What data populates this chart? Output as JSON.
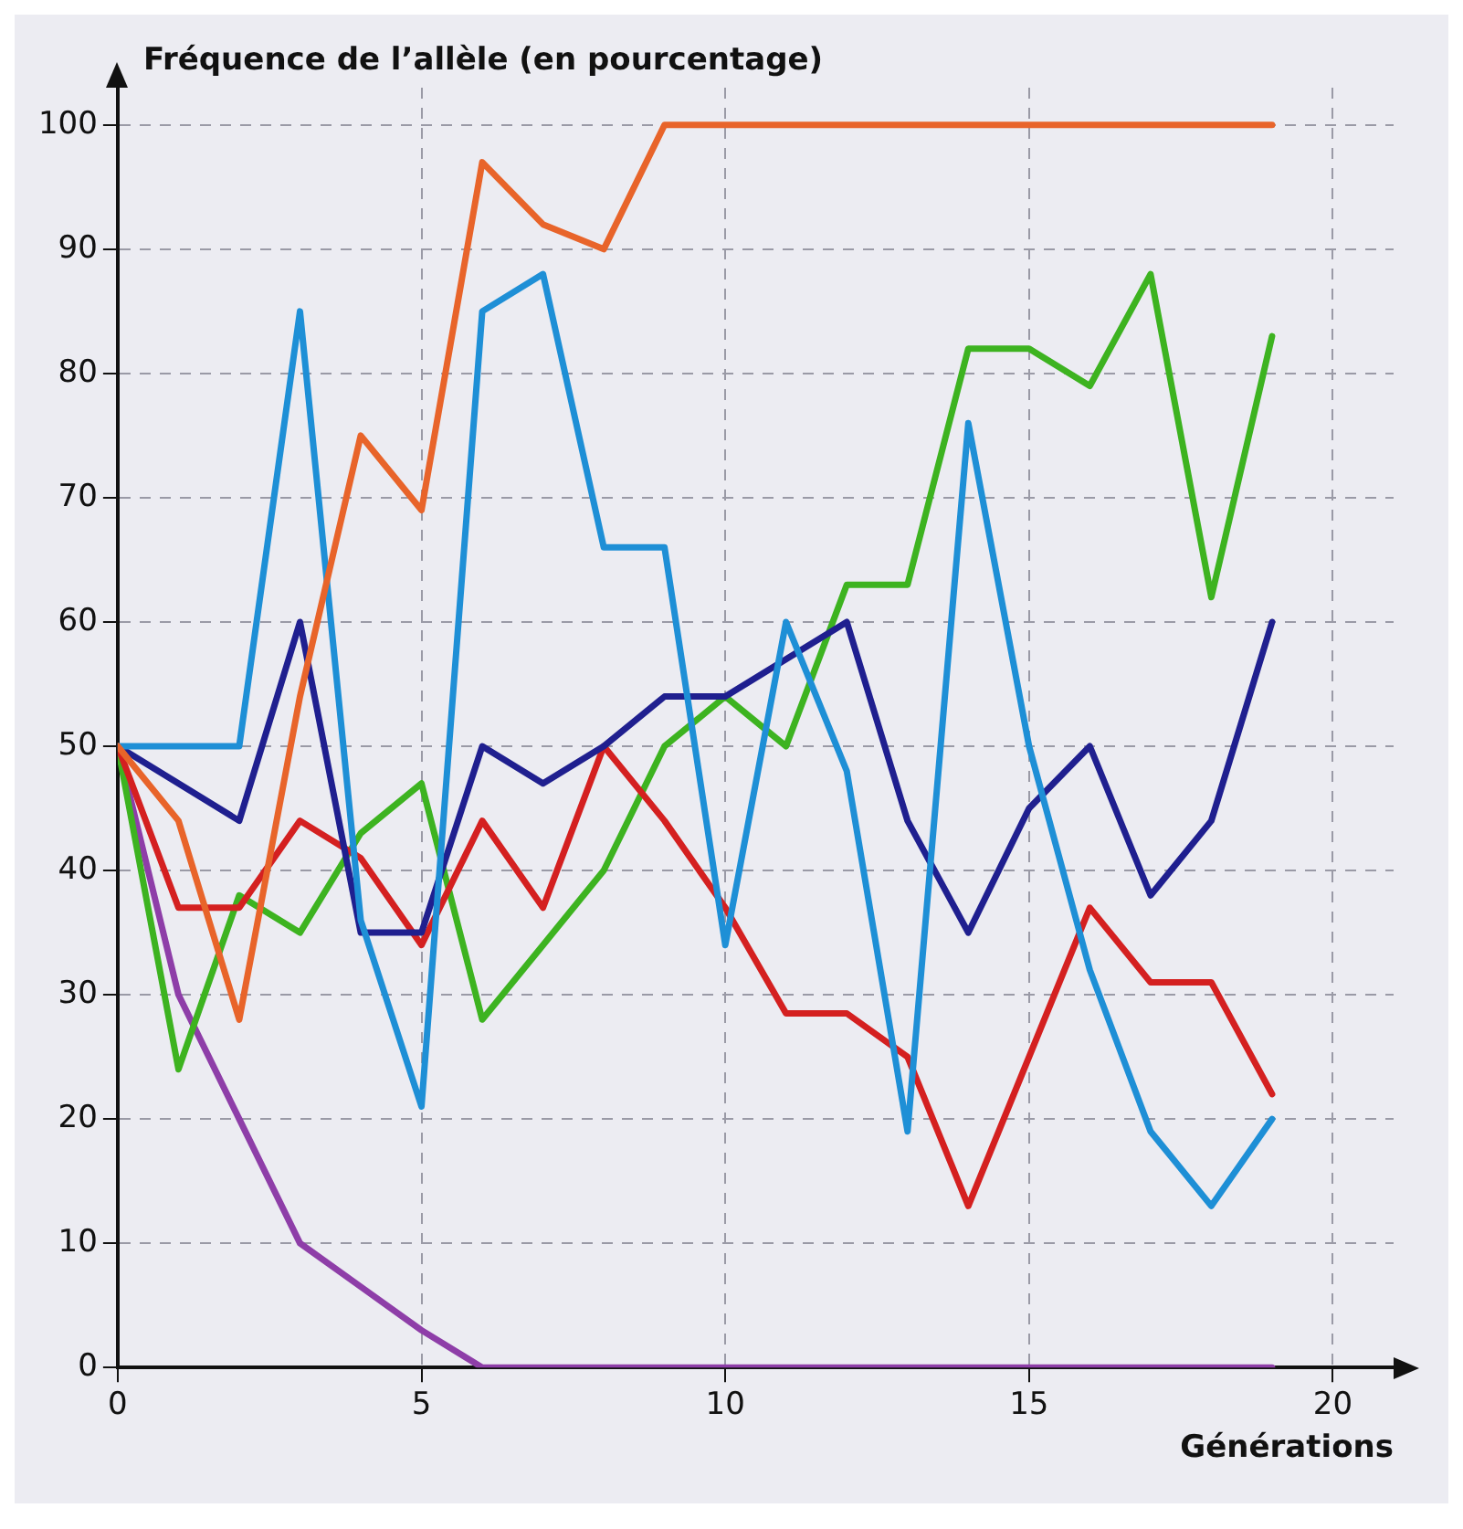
{
  "chart_data": {
    "type": "line",
    "ylabel": "Fréquence de l’allèle (en pourcentage)",
    "xlabel": "Générations",
    "x": [
      0,
      1,
      2,
      3,
      4,
      5,
      6,
      7,
      8,
      9,
      10,
      11,
      12,
      13,
      14,
      15,
      16,
      17,
      18,
      19
    ],
    "series": [
      {
        "color": "#e8642a",
        "values": [
          50,
          44,
          28,
          54,
          75,
          69,
          97,
          92,
          90,
          100,
          100,
          100,
          100,
          100,
          100,
          100,
          100,
          100,
          100,
          100
        ]
      },
      {
        "color": "#1e8fd6",
        "values": [
          50,
          50,
          50,
          85,
          36,
          21,
          85,
          88,
          66,
          66,
          34,
          60,
          48,
          19,
          76,
          50,
          32,
          19,
          13,
          20
        ]
      },
      {
        "color": "#1f1f8f",
        "values": [
          50,
          47,
          44,
          60,
          35,
          35,
          50,
          47,
          50,
          54,
          54,
          57,
          60,
          44,
          35,
          45,
          50,
          38,
          44,
          60
        ]
      },
      {
        "color": "#d42020",
        "values": [
          50,
          37,
          37,
          44,
          41,
          34,
          44,
          37,
          50,
          44,
          37,
          28.5,
          28.5,
          25,
          13,
          25,
          37,
          31,
          31,
          22
        ]
      },
      {
        "color": "#3db320",
        "values": [
          50,
          24,
          38,
          35,
          43,
          47,
          28,
          34,
          40,
          50,
          54,
          50,
          63,
          63,
          82,
          82,
          79,
          88,
          62,
          83
        ]
      },
      {
        "color": "#8e3ea8",
        "values": [
          50,
          30,
          20,
          10,
          6.5,
          3,
          0,
          0,
          0,
          0,
          0,
          0,
          0,
          0,
          0,
          0,
          0,
          0,
          0,
          0
        ]
      }
    ],
    "xlim": [
      0,
      21
    ],
    "ylim": [
      0,
      103
    ],
    "xticks": [
      0,
      5,
      10,
      15,
      20
    ],
    "yticks": [
      0,
      10,
      20,
      30,
      40,
      50,
      60,
      70,
      80,
      90,
      100
    ],
    "grid": true,
    "legend": false,
    "marker": "none",
    "line_style": "solid"
  }
}
